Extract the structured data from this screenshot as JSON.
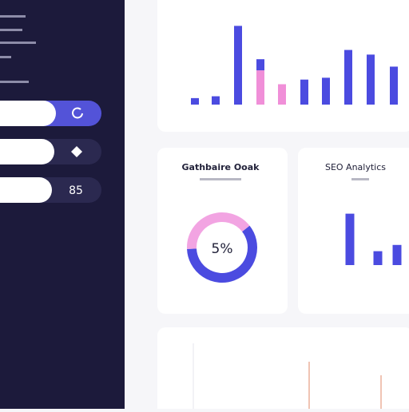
{
  "sidebar": {
    "buttons": [
      {
        "kind": "refresh"
      },
      {
        "kind": "diamond"
      },
      {
        "label": "85"
      }
    ]
  },
  "charts": [
    {
      "type": "bar",
      "ylim": [
        0,
        100
      ],
      "series": [
        {
          "color": "#4b4be0",
          "values": [
            7,
            9,
            85,
            12,
            0,
            27,
            29,
            59,
            54,
            41
          ]
        },
        {
          "color": "#f08fd8",
          "values": [
            0,
            0,
            0,
            37,
            22,
            0,
            0,
            0,
            0,
            0
          ]
        }
      ]
    },
    {
      "type": "donut",
      "title": "Gathbaire Ooak",
      "center_label": "5%",
      "values": [
        60,
        40
      ],
      "colors": [
        "#4b4be0",
        "#f2a4e2"
      ]
    },
    {
      "type": "bar",
      "title": "SEO Analytics",
      "ylim": [
        0,
        100
      ],
      "series": [
        {
          "color": "#4b4be0",
          "values": [
            74,
            20,
            29
          ]
        }
      ]
    }
  ]
}
